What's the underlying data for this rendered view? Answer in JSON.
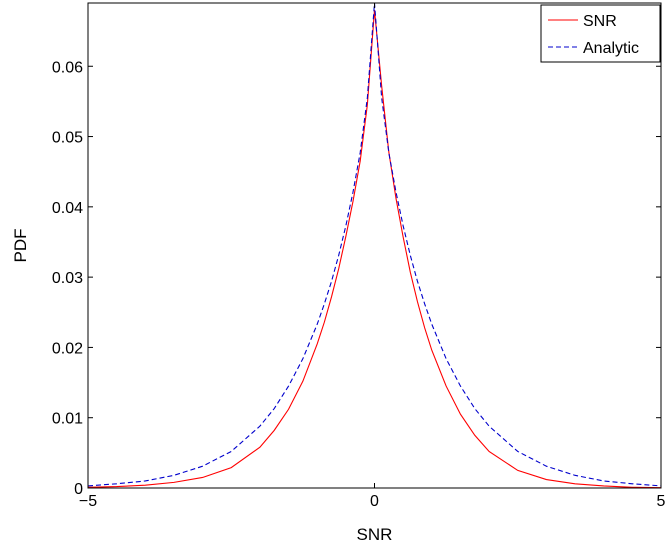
{
  "chart_data": {
    "type": "line",
    "title": "",
    "xlabel": "SNR",
    "ylabel": "PDF",
    "xlim": [
      -5,
      5
    ],
    "ylim": [
      0,
      0.069
    ],
    "xticks": [
      -5,
      0,
      5
    ],
    "xtick_labels": [
      "−5",
      "0",
      "5"
    ],
    "yticks": [
      0,
      0.01,
      0.02,
      0.03,
      0.04,
      0.05,
      0.06
    ],
    "ytick_labels": [
      "0",
      "0.01",
      "0.02",
      "0.03",
      "0.04",
      "0.05",
      "0.06"
    ],
    "grid": false,
    "legend_position": "top-right",
    "series": [
      {
        "name": "SNR",
        "color": "#ff0000",
        "style": "solid",
        "x": [
          -5,
          -4.5,
          -4,
          -3.5,
          -3,
          -2.5,
          -2,
          -1.75,
          -1.5,
          -1.25,
          -1,
          -0.875,
          -0.75,
          -0.625,
          -0.5,
          -0.375,
          -0.25,
          -0.125,
          0,
          0.125,
          0.25,
          0.375,
          0.5,
          0.625,
          0.75,
          0.875,
          1,
          1.25,
          1.5,
          1.75,
          2,
          2.5,
          3,
          3.5,
          4,
          4.5,
          5
        ],
        "y": [
          0.0001,
          0.0002,
          0.0004,
          0.0008,
          0.0015,
          0.0029,
          0.0058,
          0.0082,
          0.0112,
          0.0152,
          0.0205,
          0.0236,
          0.0272,
          0.0312,
          0.0358,
          0.0408,
          0.0465,
          0.0545,
          0.068,
          0.0572,
          0.0478,
          0.0412,
          0.0357,
          0.0307,
          0.0265,
          0.0228,
          0.0196,
          0.0145,
          0.0105,
          0.0075,
          0.0052,
          0.0025,
          0.0012,
          0.0006,
          0.0003,
          0.0001,
          5e-05
        ]
      },
      {
        "name": "Analytic",
        "color": "#0000cc",
        "style": "dashed",
        "x": [
          -5,
          -4.5,
          -4,
          -3.5,
          -3,
          -2.5,
          -2,
          -1.75,
          -1.5,
          -1.25,
          -1,
          -0.875,
          -0.75,
          -0.625,
          -0.5,
          -0.375,
          -0.25,
          -0.125,
          0,
          0.125,
          0.25,
          0.375,
          0.5,
          0.625,
          0.75,
          0.875,
          1,
          1.25,
          1.5,
          1.75,
          2,
          2.5,
          3,
          3.5,
          4,
          4.5,
          5
        ],
        "y": [
          0.0003,
          0.0006,
          0.001,
          0.0018,
          0.0031,
          0.0052,
          0.0088,
          0.0113,
          0.0145,
          0.0184,
          0.0233,
          0.0262,
          0.0294,
          0.0331,
          0.0373,
          0.0421,
          0.0477,
          0.0555,
          0.069,
          0.0555,
          0.0477,
          0.0421,
          0.0373,
          0.0331,
          0.0294,
          0.0262,
          0.0233,
          0.0184,
          0.0145,
          0.0113,
          0.0088,
          0.0052,
          0.0031,
          0.0018,
          0.001,
          0.0006,
          0.0003
        ]
      }
    ]
  }
}
